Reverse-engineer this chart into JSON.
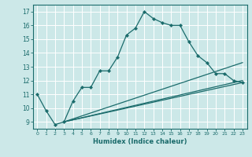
{
  "bg_color": "#cce8e8",
  "grid_color": "#ffffff",
  "line_color": "#1a6b6b",
  "xlabel": "Humidex (Indice chaleur)",
  "xlim": [
    -0.5,
    23.5
  ],
  "ylim": [
    8.5,
    17.5
  ],
  "yticks": [
    9,
    10,
    11,
    12,
    13,
    14,
    15,
    16,
    17
  ],
  "xticks": [
    0,
    1,
    2,
    3,
    4,
    5,
    6,
    7,
    8,
    9,
    10,
    11,
    12,
    13,
    14,
    15,
    16,
    17,
    18,
    19,
    20,
    21,
    22,
    23
  ],
  "main_x": [
    0,
    1,
    2,
    3,
    4,
    5,
    6,
    7,
    8,
    9,
    10,
    11,
    12,
    13,
    14,
    15,
    16,
    17,
    18,
    19,
    20,
    21,
    22,
    23
  ],
  "main_y": [
    11.0,
    9.8,
    8.8,
    9.0,
    10.5,
    11.5,
    11.5,
    12.7,
    12.7,
    13.7,
    15.3,
    15.8,
    17.0,
    16.5,
    16.2,
    16.0,
    16.0,
    14.8,
    13.8,
    13.3,
    12.5,
    12.5,
    12.0,
    11.85
  ],
  "line2_x": [
    3,
    23
  ],
  "line2_y": [
    9.0,
    13.3
  ],
  "line3_x": [
    3,
    23
  ],
  "line3_y": [
    9.0,
    12.0
  ],
  "line4_x": [
    3,
    23
  ],
  "line4_y": [
    9.0,
    11.85
  ]
}
